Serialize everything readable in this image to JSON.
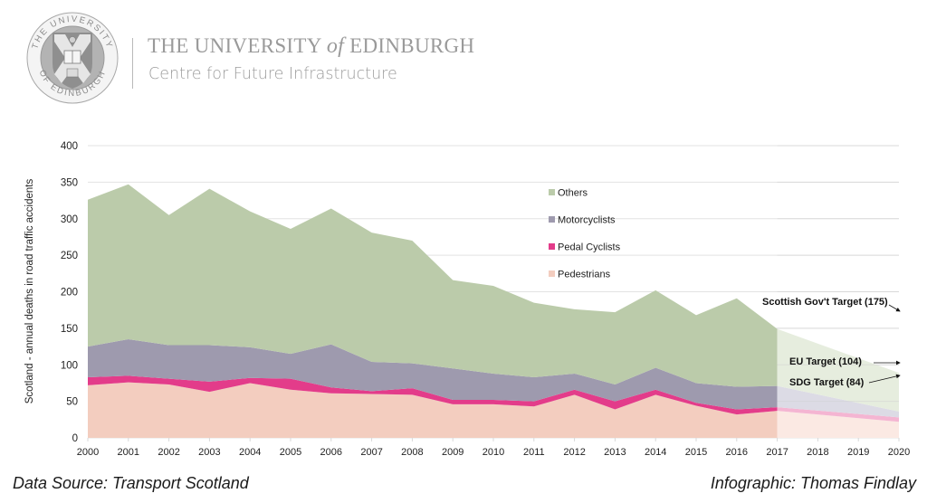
{
  "header": {
    "crest_icon": "university-of-edinburgh-crest",
    "crest_ring_text": "THE UNIVERSITY OF EDINBURGH",
    "university_name_before": "THE UNIVERSITY ",
    "university_name_of": "of",
    "university_name_after": " EDINBURGH",
    "centre_name": "Centre for Future Infrastructure"
  },
  "footer": {
    "source": "Data Source: Transport Scotland",
    "credit": "Infographic: Thomas Findlay"
  },
  "colors": {
    "others": "#bbcbaa",
    "motorcyclists": "#9e9aae",
    "pedal_cyclists": "#e33c8a",
    "pedestrians": "#f3cdbf",
    "others_projected": "#e6edde",
    "motorcyclists_projected": "#dcdbe5",
    "pedal_cyclists_projected": "#f4b5d2",
    "pedestrians_projected": "#fbe9e3",
    "grid": "#e3e3e3",
    "text": "#222222"
  },
  "chart_data": {
    "type": "area",
    "stacked": true,
    "title": "",
    "xlabel": "",
    "ylabel": "Scotland - annual deaths in road traffic accidents",
    "ylim": [
      0,
      400
    ],
    "yticks": [
      0,
      50,
      100,
      150,
      200,
      250,
      300,
      350,
      400
    ],
    "grid": true,
    "legend_position": "center-right (inside plot)",
    "x": [
      2000,
      2001,
      2002,
      2003,
      2004,
      2005,
      2006,
      2007,
      2008,
      2009,
      2010,
      2011,
      2012,
      2013,
      2014,
      2015,
      2016,
      2017
    ],
    "xticks": [
      "2000",
      "2001",
      "2002",
      "2003",
      "2004",
      "2005",
      "2006",
      "2007",
      "2008",
      "2009",
      "2010",
      "2011",
      "2012",
      "2013",
      "2014",
      "2015",
      "2016",
      "2017",
      "2018",
      "2019",
      "2020"
    ],
    "series": [
      {
        "name": "Pedestrians",
        "key": "pedestrians",
        "values": [
          72,
          76,
          73,
          63,
          75,
          66,
          61,
          60,
          59,
          46,
          46,
          43,
          59,
          39,
          59,
          44,
          32,
          37
        ]
      },
      {
        "name": "Pedal Cyclists",
        "key": "pedal_cyclists",
        "values": [
          11,
          9,
          8,
          14,
          7,
          15,
          8,
          4,
          9,
          6,
          6,
          7,
          7,
          11,
          7,
          4,
          7,
          5
        ]
      },
      {
        "name": "Motorcyclists",
        "key": "motorcyclists",
        "values": [
          42,
          50,
          46,
          50,
          42,
          34,
          59,
          40,
          34,
          43,
          36,
          33,
          22,
          23,
          30,
          27,
          31,
          29
        ]
      },
      {
        "name": "Others",
        "key": "others",
        "values": [
          201,
          212,
          178,
          214,
          186,
          171,
          186,
          177,
          168,
          121,
          120,
          102,
          88,
          99,
          106,
          93,
          121,
          78
        ]
      }
    ],
    "legend_order": [
      "Others",
      "Motorcyclists",
      "Pedal Cyclists",
      "Pedestrians"
    ],
    "projection": {
      "x": [
        2017,
        2020
      ],
      "series": [
        {
          "key": "pedestrians",
          "values": [
            37,
            22
          ]
        },
        {
          "key": "pedal_cyclists",
          "values": [
            5,
            6
          ]
        },
        {
          "key": "motorcyclists",
          "values": [
            29,
            8
          ]
        },
        {
          "key": "others",
          "values": [
            78,
            53
          ]
        }
      ]
    },
    "annotations": [
      {
        "text": "Scottish Gov't Target (175)",
        "target_value": 175
      },
      {
        "text": "EU Target (104)",
        "target_value": 104
      },
      {
        "text": "SDG Target (84)",
        "target_value": 84
      }
    ]
  }
}
